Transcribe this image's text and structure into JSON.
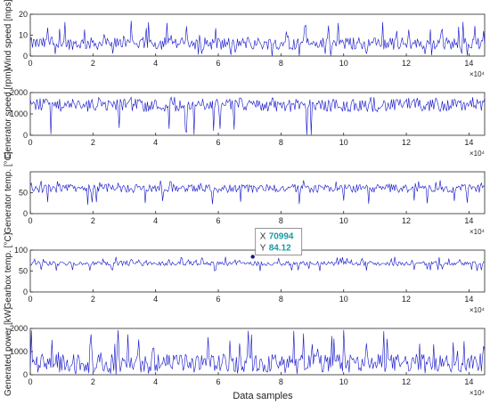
{
  "chart_data": [
    {
      "type": "line",
      "ylabel": "Wind speed [mps]",
      "ylim": [
        0,
        20
      ],
      "yticks": [
        0,
        10,
        20
      ],
      "xlim": [
        0,
        145000
      ],
      "xticks": [
        0,
        2,
        4,
        6,
        8,
        10,
        12,
        14
      ],
      "x_exponent": "×10⁴",
      "series": [
        {
          "color": "#1010c8",
          "baseline": 6,
          "spread": 3,
          "spike_max": 17,
          "spike_min": 0
        }
      ]
    },
    {
      "type": "line",
      "ylabel": "Generator speed [rpm]",
      "ylim": [
        0,
        2000
      ],
      "yticks": [
        0,
        1000,
        2000
      ],
      "xlim": [
        0,
        145000
      ],
      "xticks": [
        0,
        2,
        4,
        6,
        8,
        10,
        12,
        14
      ],
      "x_exponent": "×10⁴",
      "series": [
        {
          "color": "#1010c8",
          "baseline": 1400,
          "spread": 300,
          "spike_max": 1800,
          "spike_min": 0
        }
      ]
    },
    {
      "type": "line",
      "ylabel": "Generator temp. [°C]",
      "ylim": [
        0,
        100
      ],
      "yticks": [
        0,
        50
      ],
      "xlim": [
        0,
        145000
      ],
      "xticks": [
        0,
        2,
        4,
        6,
        8,
        10,
        12,
        14
      ],
      "x_exponent": "×10⁴",
      "series": [
        {
          "color": "#1010c8",
          "baseline": 60,
          "spread": 10,
          "spike_max": 80,
          "spike_min": 20
        }
      ]
    },
    {
      "type": "line",
      "ylabel": "Gearbox temp. [°C]",
      "ylim": [
        0,
        100
      ],
      "yticks": [
        0,
        50,
        100
      ],
      "xlim": [
        0,
        145000
      ],
      "xticks": [
        0,
        2,
        4,
        6,
        8,
        10,
        12,
        14
      ],
      "x_exponent": "×10⁴",
      "series": [
        {
          "color": "#1010c8",
          "baseline": 68,
          "spread": 5,
          "spike_max": 84,
          "spike_min": 50
        }
      ],
      "datatip": {
        "x_label": "X",
        "x_value": "70994",
        "y_label": "Y",
        "y_value": "84.12",
        "x": 70994,
        "y": 84.12
      }
    },
    {
      "type": "line",
      "ylabel": "Generated power [kW]",
      "xlabel": "Data samples",
      "ylim": [
        0,
        2000
      ],
      "yticks": [
        0,
        1000,
        2000
      ],
      "xlim": [
        0,
        145000
      ],
      "xticks": [
        0,
        2,
        4,
        6,
        8,
        10,
        12,
        14
      ],
      "x_exponent": "×10⁴",
      "series": [
        {
          "color": "#1010c8",
          "baseline": 500,
          "spread": 400,
          "spike_max": 2000,
          "spike_min": 0
        }
      ]
    }
  ]
}
